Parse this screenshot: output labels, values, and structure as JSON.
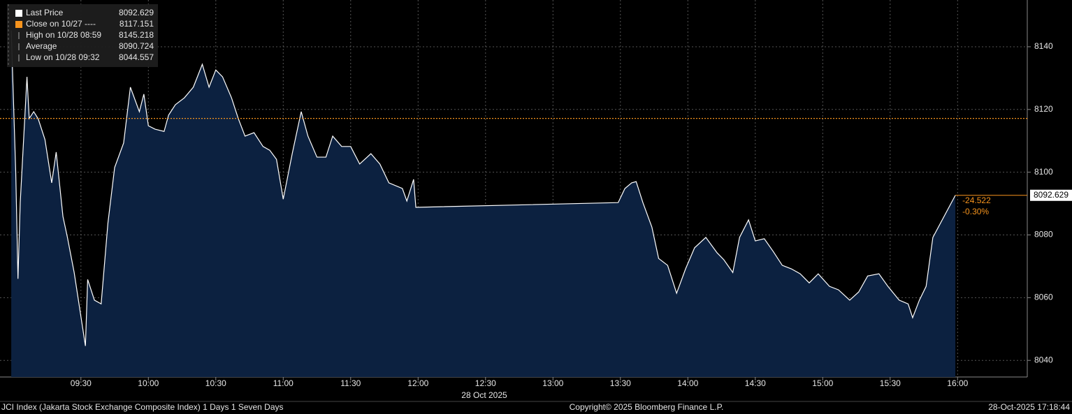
{
  "chart_data": {
    "type": "area",
    "color": "#ffffff",
    "fill": "#0c2140",
    "x": [
      539,
      541,
      542,
      543,
      546,
      547,
      549,
      551,
      554,
      557,
      559,
      562,
      564,
      567,
      572,
      573,
      576,
      579,
      582,
      585,
      589,
      592,
      596,
      598,
      600,
      603,
      607,
      609,
      612,
      616,
      620,
      624,
      627,
      630,
      633,
      637,
      640,
      643,
      647,
      651,
      654,
      657,
      660,
      664,
      668,
      671,
      675,
      679,
      682,
      686,
      690,
      694,
      699,
      703,
      707,
      713,
      715,
      718,
      719,
      809,
      812,
      815,
      817,
      820,
      824,
      827,
      831,
      835,
      839,
      843,
      848,
      853,
      856,
      860,
      863,
      867,
      870,
      874,
      878,
      882,
      886,
      890,
      894,
      898,
      903,
      907,
      912,
      916,
      920,
      925,
      929,
      934,
      938,
      940,
      943,
      946,
      949,
      959
    ],
    "values": [
      8145.2,
      8100,
      8066,
      8090.3,
      8130.4,
      8117.1,
      8119.3,
      8117,
      8110.4,
      8096.6,
      8106.4,
      8085.9,
      8079.2,
      8068,
      8044.6,
      8065.8,
      8059.2,
      8058,
      8083.7,
      8101.5,
      8109.3,
      8127.1,
      8119.3,
      8124.9,
      8114.8,
      8113.7,
      8113,
      8118.2,
      8121.5,
      8123.7,
      8127.1,
      8134.4,
      8127.1,
      8132.6,
      8130.4,
      8123.7,
      8117.1,
      8111.5,
      8112.6,
      8108.2,
      8107,
      8104.1,
      8091.4,
      8105.9,
      8119.3,
      8111.5,
      8104.8,
      8104.8,
      8111.5,
      8108.2,
      8108.2,
      8102.6,
      8105.9,
      8102.6,
      8096.6,
      8094.8,
      8090.8,
      8097.7,
      8088.8,
      8090.3,
      8094.8,
      8096.6,
      8097,
      8090.3,
      8082.5,
      8072.5,
      8070.3,
      8061.4,
      8069.2,
      8075.9,
      8079.2,
      8074.3,
      8072.1,
      8068,
      8079.2,
      8084.8,
      8078.1,
      8078.8,
      8074.7,
      8070.3,
      8069.2,
      8067.6,
      8064.7,
      8067.6,
      8063.6,
      8062.5,
      8059.2,
      8061.8,
      8066.9,
      8067.6,
      8063.6,
      8059.2,
      8058,
      8053.6,
      8059.2,
      8063.6,
      8079.2,
      8092.629
    ],
    "xlim": [
      534,
      991
    ],
    "xticks": [
      {
        "value": 570,
        "label": "09:30"
      },
      {
        "value": 600,
        "label": "10:00"
      },
      {
        "value": 630,
        "label": "10:30"
      },
      {
        "value": 660,
        "label": "11:00"
      },
      {
        "value": 690,
        "label": "11:30"
      },
      {
        "value": 720,
        "label": "12:00"
      },
      {
        "value": 750,
        "label": "12:30"
      },
      {
        "value": 780,
        "label": "13:00"
      },
      {
        "value": 810,
        "label": "13:30"
      },
      {
        "value": 840,
        "label": "14:00"
      },
      {
        "value": 870,
        "label": "14:30"
      },
      {
        "value": 900,
        "label": "15:00"
      },
      {
        "value": 930,
        "label": "15:30"
      },
      {
        "value": 960,
        "label": "16:00"
      }
    ],
    "x_axis_label": "28 Oct 2025",
    "ylim": [
      8034.7,
      8154.9
    ],
    "yticks": [
      8040,
      8060,
      8080,
      8100,
      8120,
      8140
    ],
    "grid": true,
    "legend": [
      {
        "label": "Last Price",
        "value": 8092.629,
        "color": "#ffffff"
      },
      {
        "label": "Close on 10/27 ----",
        "value": 8117.151,
        "color": "#f7941d"
      },
      {
        "label": "High on 10/28 08:59",
        "value": 8145.218,
        "color": "#aaaaaa"
      },
      {
        "label": "Average",
        "value": 8090.724,
        "color": "#aaaaaa"
      },
      {
        "label": "Low on 10/28 09:32",
        "value": 8044.557,
        "color": "#aaaaaa"
      }
    ],
    "last_price_label": 8092.629,
    "change": -24.522,
    "change_pct": "-0.30%",
    "footer": {
      "left": "JCI Index (Jakarta Stock Exchange Composite Index) 1 Days 1 Seven Days",
      "center": "Copyright© 2025 Bloomberg Finance L.P.",
      "right": "28-Oct-2025 17:18:44"
    }
  }
}
